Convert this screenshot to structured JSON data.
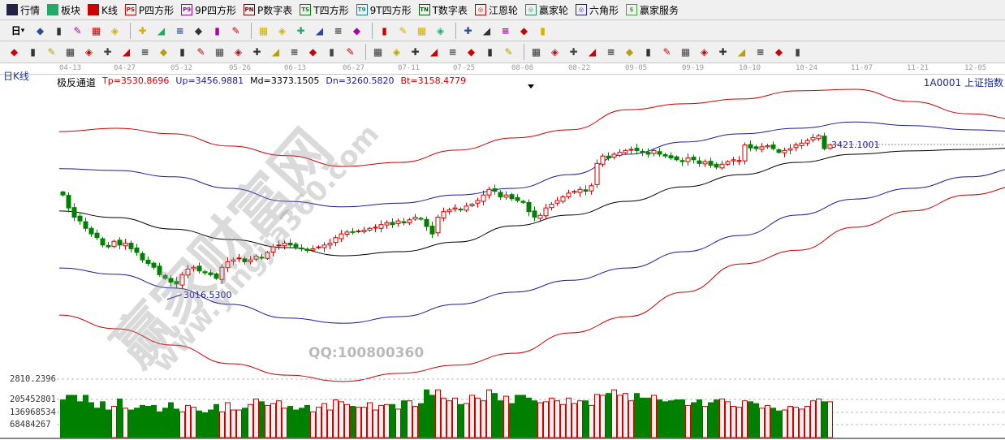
{
  "menu": [
    {
      "label": "行情",
      "icon": "grid-icon",
      "color": "#224"
    },
    {
      "label": "板块",
      "icon": "blocks-icon",
      "color": "#2a6"
    },
    {
      "label": "K线",
      "icon": "kline-icon",
      "color": "#c00"
    },
    {
      "label": "P四方形",
      "icon": "ps-icon",
      "badge": "PS",
      "color": "#c00"
    },
    {
      "label": "9P四方形",
      "icon": "p9-icon",
      "badge": "P9",
      "color": "#a0a"
    },
    {
      "label": "P数字表",
      "icon": "pn-icon",
      "badge": "PN",
      "color": "#800"
    },
    {
      "label": "T四方形",
      "icon": "ts-icon",
      "badge": "TS",
      "color": "#080"
    },
    {
      "label": "9T四方形",
      "icon": "t9-icon",
      "badge": "T9",
      "color": "#08a"
    },
    {
      "label": "T数字表",
      "icon": "tn-icon",
      "badge": "TN",
      "color": "#060"
    },
    {
      "label": "江恩轮",
      "icon": "gann-wheel-icon",
      "badge": "◎",
      "color": "#a00"
    },
    {
      "label": "赢家轮",
      "icon": "winner-wheel-icon",
      "badge": "◎",
      "color": "#286"
    },
    {
      "label": "六角形",
      "icon": "hexagon-icon",
      "badge": "◎",
      "color": "#22a"
    },
    {
      "label": "赢家服务",
      "icon": "dollar-icon",
      "badge": "$",
      "color": "#3a3"
    }
  ],
  "toolbar1": {
    "period": "日",
    "icons": [
      "book-icon",
      "notes-icon",
      "k3-icon",
      "k9-icon",
      "candle-icon",
      "ji-icon",
      "flag-icon",
      "first-icon",
      "last-icon",
      "prev-icon",
      "next-icon",
      "arrow-left-icon",
      "arrow-right-icon",
      "expand-icon",
      "shrink-icon",
      "zoom-in-icon",
      "zoom-out-icon",
      "hand-icon",
      "crosshair-icon",
      "line-icon",
      "cloud-icon",
      "calendar-icon",
      "calculator-icon",
      "save-icon",
      "network-icon",
      "print-icon"
    ]
  },
  "toolbar2": {
    "icons": [
      "pen-icon",
      "hash-icon",
      "gold1-icon",
      "gold2-icon",
      "f-icon",
      "spiral-icon",
      "ruler-icon",
      "circle-icon",
      "grid-icon",
      "n2-icon",
      "fan-icon",
      "target-icon",
      "star-icon",
      "square-icon",
      "line2-icon",
      "shen-icon",
      "ying-icon",
      "box123-icon",
      "measure-icon",
      "ladder-icon",
      "fan2-icon",
      "hatch-icon",
      "hatch2-icon",
      "angle-icon",
      "zigzag-icon",
      "table-icon",
      "lines-icon",
      "bars-icon",
      "pct1-icon",
      "percent-icon",
      "pct2-icon",
      "gold-circle-icon",
      "gold-lines-icon",
      "pencil2-icon",
      "wave-icon",
      "jin-icon",
      "j-icon",
      "f2-icon",
      "jin2-icon",
      "shen2-icon",
      "ying2-icon",
      "si-icon"
    ]
  },
  "period_label": "日K线",
  "dates": [
    "04-13",
    "04-27",
    "05-12",
    "05-26",
    "06-13",
    "06-27",
    "07-11",
    "07-25",
    "08-08",
    "08-22",
    "09-05",
    "09-19",
    "10-10",
    "10-24",
    "11-07",
    "11-21",
    "12-05"
  ],
  "indicator": {
    "name": "极反通道",
    "tp": "Tp=3530.8696",
    "up": "Up=3456.9881",
    "md": "Md=3373.1505",
    "dn": "Dn=3260.5820",
    "bt": "Bt=3158.4779"
  },
  "security": "1A0001  上证指数",
  "annotations": {
    "low": "3016.5300",
    "high": "3421.1001"
  },
  "volume_axis": {
    "top": "2810.2396",
    "ticks": [
      "205452801",
      "136968534",
      "68484267"
    ]
  },
  "watermark": {
    "brand": "赢家财富网",
    "url": "www.yingjia360.com",
    "qq": "QQ:100800360"
  },
  "colors": {
    "up": "#d00000",
    "down": "#008000",
    "tp": "#cc0000",
    "up_band": "#1a1aa0",
    "md": "#000000"
  },
  "chart_data": {
    "type": "candlestick",
    "closes": [
      3285,
      3250,
      3225,
      3215,
      3195,
      3180,
      3170,
      3150,
      3145,
      3160,
      3150,
      3155,
      3140,
      3130,
      3110,
      3100,
      3090,
      3070,
      3060,
      3050,
      3045,
      3070,
      3085,
      3090,
      3080,
      3075,
      3070,
      3060,
      3090,
      3105,
      3110,
      3115,
      3105,
      3110,
      3120,
      3115,
      3130,
      3145,
      3150,
      3155,
      3150,
      3145,
      3140,
      3135,
      3140,
      3145,
      3150,
      3155,
      3170,
      3180,
      3185,
      3185,
      3188,
      3190,
      3195,
      3198,
      3205,
      3210,
      3205,
      3215,
      3210,
      3218,
      3225,
      3220,
      3200,
      3180,
      3225,
      3240,
      3245,
      3250,
      3245,
      3255,
      3260,
      3270,
      3285,
      3300,
      3295,
      3280,
      3285,
      3275,
      3270,
      3265,
      3240,
      3225,
      3230,
      3250,
      3260,
      3270,
      3280,
      3290,
      3295,
      3300,
      3295,
      3310,
      3370,
      3390,
      3385,
      3395,
      3400,
      3405,
      3408,
      3405,
      3400,
      3395,
      3405,
      3395,
      3390,
      3385,
      3380,
      3375,
      3385,
      3380,
      3370,
      3375,
      3365,
      3360,
      3368,
      3375,
      3380,
      3378,
      3420,
      3412,
      3410,
      3415,
      3418,
      3410,
      3400,
      3405,
      3410,
      3420,
      3425,
      3432,
      3440,
      3445,
      3410,
      3420
    ],
    "volume_million": [
      205,
      230,
      230,
      195,
      230,
      190,
      160,
      195,
      150,
      170,
      210,
      160,
      150,
      160,
      175,
      170,
      175,
      140,
      160,
      190,
      155,
      140,
      175,
      165,
      145,
      135,
      150,
      180,
      140,
      190,
      150,
      150,
      160,
      180,
      210,
      195,
      175,
      185,
      200,
      160,
      170,
      150,
      160,
      175,
      140,
      165,
      185,
      150,
      205,
      195,
      180,
      170,
      165,
      165,
      190,
      150,
      175,
      180,
      180,
      155,
      200,
      200,
      170,
      185,
      260,
      230,
      260,
      215,
      200,
      215,
      180,
      185,
      230,
      215,
      200,
      260,
      240,
      200,
      225,
      185,
      230,
      230,
      215,
      200,
      190,
      195,
      215,
      200,
      180,
      215,
      185,
      200,
      200,
      175,
      235,
      230,
      240,
      260,
      230,
      240,
      200,
      240,
      215,
      215,
      230,
      205,
      195,
      200,
      205,
      205,
      175,
      190,
      205,
      170,
      190,
      205,
      210,
      195,
      170,
      165,
      200,
      195,
      185,
      160,
      175,
      160,
      145,
      150,
      170,
      165,
      155,
      170,
      200,
      210,
      195,
      195
    ],
    "bands_step_bars": 10,
    "bands": {
      "tp": [
        3456,
        3465,
        3450,
        3417,
        3391,
        3362,
        3373,
        3406,
        3439,
        3461,
        3515,
        3531,
        3544,
        3566,
        3570,
        3537,
        3504,
        3487
      ],
      "up": [
        3356,
        3351,
        3334,
        3303,
        3268,
        3253,
        3263,
        3285,
        3303,
        3340,
        3395,
        3428,
        3450,
        3465,
        3482,
        3472,
        3461,
        3456
      ],
      "md": [
        3242,
        3224,
        3193,
        3165,
        3143,
        3121,
        3132,
        3158,
        3202,
        3231,
        3268,
        3307,
        3340,
        3373,
        3395,
        3404,
        3408,
        3412
      ],
      "dn": [
        3088,
        3071,
        3034,
        2990,
        2953,
        2939,
        2957,
        2990,
        3023,
        3055,
        3088,
        3132,
        3176,
        3231,
        3274,
        3303,
        3334,
        3360
      ],
      "bt": [
        2961,
        2924,
        2880,
        2830,
        2799,
        2782,
        2804,
        2826,
        2858,
        2913,
        2957,
        3023,
        3099,
        3136,
        3198,
        3242,
        3285,
        3312
      ]
    }
  }
}
